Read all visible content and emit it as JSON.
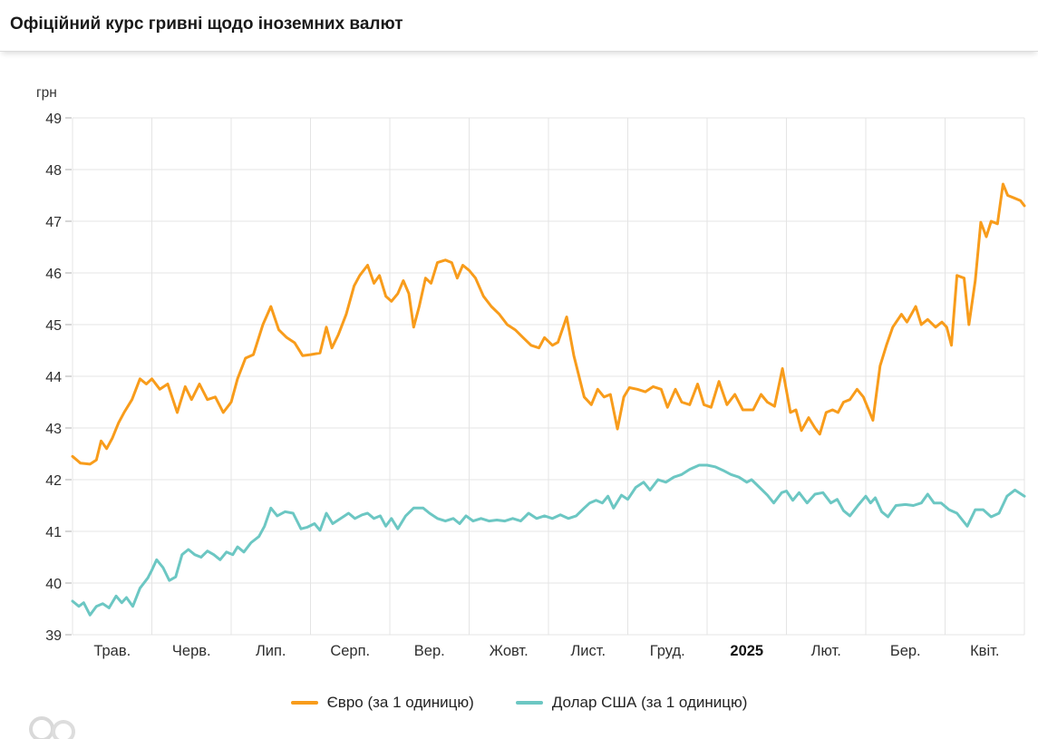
{
  "header": {
    "title": "Офіційний курс гривні щодо іноземних валют"
  },
  "chart_data": {
    "type": "line",
    "title": "Офіційний курс гривні щодо іноземних валют",
    "ylabel": "грн",
    "xlabel": "",
    "ylim": [
      39,
      49
    ],
    "y_tick_step": 1,
    "grid": true,
    "legend_position": "bottom",
    "x_range_months": [
      0,
      12
    ],
    "x_tick_labels": [
      "Трав.",
      "Черв.",
      "Лип.",
      "Серп.",
      "Вер.",
      "Жовт.",
      "Лист.",
      "Груд.",
      "2025",
      "Лют.",
      "Бер.",
      "Квіт."
    ],
    "bold_x_tick": "2025",
    "series": [
      {
        "key": "euro",
        "name": "Євро (за 1 одиницю)",
        "color": "#f89c1b",
        "points": [
          [
            0,
            42.45
          ],
          [
            0.1,
            42.32
          ],
          [
            0.22,
            42.3
          ],
          [
            0.3,
            42.38
          ],
          [
            0.36,
            42.75
          ],
          [
            0.43,
            42.6
          ],
          [
            0.5,
            42.8
          ],
          [
            0.58,
            43.1
          ],
          [
            0.65,
            43.3
          ],
          [
            0.75,
            43.55
          ],
          [
            0.85,
            43.95
          ],
          [
            0.93,
            43.85
          ],
          [
            1.0,
            43.95
          ],
          [
            1.1,
            43.75
          ],
          [
            1.2,
            43.85
          ],
          [
            1.32,
            43.3
          ],
          [
            1.42,
            43.8
          ],
          [
            1.5,
            43.55
          ],
          [
            1.6,
            43.85
          ],
          [
            1.7,
            43.55
          ],
          [
            1.8,
            43.6
          ],
          [
            1.9,
            43.3
          ],
          [
            2.0,
            43.5
          ],
          [
            2.08,
            43.95
          ],
          [
            2.18,
            44.35
          ],
          [
            2.28,
            44.42
          ],
          [
            2.4,
            45.0
          ],
          [
            2.5,
            45.35
          ],
          [
            2.6,
            44.9
          ],
          [
            2.7,
            44.75
          ],
          [
            2.8,
            44.65
          ],
          [
            2.9,
            44.4
          ],
          [
            3.0,
            44.42
          ],
          [
            3.12,
            44.45
          ],
          [
            3.2,
            44.95
          ],
          [
            3.27,
            44.55
          ],
          [
            3.35,
            44.8
          ],
          [
            3.45,
            45.2
          ],
          [
            3.55,
            45.75
          ],
          [
            3.62,
            45.95
          ],
          [
            3.72,
            46.15
          ],
          [
            3.8,
            45.8
          ],
          [
            3.87,
            45.95
          ],
          [
            3.95,
            45.55
          ],
          [
            4.02,
            45.45
          ],
          [
            4.1,
            45.6
          ],
          [
            4.17,
            45.85
          ],
          [
            4.24,
            45.6
          ],
          [
            4.3,
            44.95
          ],
          [
            4.37,
            45.35
          ],
          [
            4.45,
            45.9
          ],
          [
            4.52,
            45.8
          ],
          [
            4.6,
            46.2
          ],
          [
            4.7,
            46.25
          ],
          [
            4.78,
            46.2
          ],
          [
            4.85,
            45.9
          ],
          [
            4.92,
            46.15
          ],
          [
            5.0,
            46.05
          ],
          [
            5.08,
            45.9
          ],
          [
            5.18,
            45.55
          ],
          [
            5.28,
            45.35
          ],
          [
            5.38,
            45.2
          ],
          [
            5.48,
            45.0
          ],
          [
            5.58,
            44.9
          ],
          [
            5.68,
            44.75
          ],
          [
            5.78,
            44.6
          ],
          [
            5.88,
            44.55
          ],
          [
            5.95,
            44.75
          ],
          [
            6.05,
            44.6
          ],
          [
            6.12,
            44.66
          ],
          [
            6.23,
            45.15
          ],
          [
            6.32,
            44.4
          ],
          [
            6.45,
            43.6
          ],
          [
            6.54,
            43.45
          ],
          [
            6.62,
            43.75
          ],
          [
            6.7,
            43.6
          ],
          [
            6.78,
            43.65
          ],
          [
            6.87,
            42.98
          ],
          [
            6.95,
            43.6
          ],
          [
            7.02,
            43.78
          ],
          [
            7.12,
            43.75
          ],
          [
            7.22,
            43.7
          ],
          [
            7.32,
            43.8
          ],
          [
            7.42,
            43.75
          ],
          [
            7.5,
            43.4
          ],
          [
            7.6,
            43.75
          ],
          [
            7.68,
            43.5
          ],
          [
            7.78,
            43.45
          ],
          [
            7.88,
            43.85
          ],
          [
            7.96,
            43.45
          ],
          [
            8.05,
            43.4
          ],
          [
            8.15,
            43.9
          ],
          [
            8.25,
            43.45
          ],
          [
            8.35,
            43.65
          ],
          [
            8.45,
            43.35
          ],
          [
            8.58,
            43.35
          ],
          [
            8.68,
            43.65
          ],
          [
            8.76,
            43.5
          ],
          [
            8.85,
            43.42
          ],
          [
            8.95,
            44.15
          ],
          [
            9.05,
            43.3
          ],
          [
            9.12,
            43.35
          ],
          [
            9.19,
            42.95
          ],
          [
            9.28,
            43.2
          ],
          [
            9.36,
            43.0
          ],
          [
            9.42,
            42.88
          ],
          [
            9.5,
            43.3
          ],
          [
            9.58,
            43.35
          ],
          [
            9.65,
            43.3
          ],
          [
            9.72,
            43.5
          ],
          [
            9.8,
            43.55
          ],
          [
            9.89,
            43.75
          ],
          [
            9.97,
            43.6
          ],
          [
            10.09,
            43.15
          ],
          [
            10.18,
            44.2
          ],
          [
            10.26,
            44.6
          ],
          [
            10.34,
            44.95
          ],
          [
            10.45,
            45.2
          ],
          [
            10.52,
            45.05
          ],
          [
            10.63,
            45.35
          ],
          [
            10.7,
            45.0
          ],
          [
            10.78,
            45.1
          ],
          [
            10.88,
            44.95
          ],
          [
            10.96,
            45.05
          ],
          [
            11.02,
            44.95
          ],
          [
            11.08,
            44.6
          ],
          [
            11.15,
            45.95
          ],
          [
            11.24,
            45.9
          ],
          [
            11.3,
            45.0
          ],
          [
            11.38,
            45.85
          ],
          [
            11.45,
            46.98
          ],
          [
            11.52,
            46.7
          ],
          [
            11.58,
            47.0
          ],
          [
            11.66,
            46.95
          ],
          [
            11.73,
            47.72
          ],
          [
            11.79,
            47.5
          ],
          [
            11.87,
            47.45
          ],
          [
            11.95,
            47.4
          ],
          [
            12.0,
            47.3
          ]
        ]
      },
      {
        "key": "usd",
        "name": "Долар США (за 1 одиницю)",
        "color": "#6cc7c3",
        "points": [
          [
            0,
            39.65
          ],
          [
            0.08,
            39.55
          ],
          [
            0.14,
            39.62
          ],
          [
            0.22,
            39.38
          ],
          [
            0.3,
            39.55
          ],
          [
            0.38,
            39.6
          ],
          [
            0.46,
            39.52
          ],
          [
            0.55,
            39.75
          ],
          [
            0.62,
            39.62
          ],
          [
            0.68,
            39.72
          ],
          [
            0.76,
            39.55
          ],
          [
            0.85,
            39.9
          ],
          [
            0.95,
            40.1
          ],
          [
            1.0,
            40.25
          ],
          [
            1.06,
            40.45
          ],
          [
            1.14,
            40.3
          ],
          [
            1.22,
            40.05
          ],
          [
            1.3,
            40.12
          ],
          [
            1.38,
            40.55
          ],
          [
            1.46,
            40.65
          ],
          [
            1.54,
            40.55
          ],
          [
            1.62,
            40.5
          ],
          [
            1.7,
            40.62
          ],
          [
            1.78,
            40.55
          ],
          [
            1.86,
            40.45
          ],
          [
            1.94,
            40.6
          ],
          [
            2.02,
            40.55
          ],
          [
            2.08,
            40.7
          ],
          [
            2.16,
            40.6
          ],
          [
            2.25,
            40.78
          ],
          [
            2.35,
            40.9
          ],
          [
            2.42,
            41.1
          ],
          [
            2.5,
            41.45
          ],
          [
            2.58,
            41.3
          ],
          [
            2.68,
            41.38
          ],
          [
            2.78,
            41.35
          ],
          [
            2.88,
            41.05
          ],
          [
            2.96,
            41.08
          ],
          [
            3.05,
            41.15
          ],
          [
            3.12,
            41.02
          ],
          [
            3.2,
            41.35
          ],
          [
            3.28,
            41.15
          ],
          [
            3.38,
            41.25
          ],
          [
            3.48,
            41.35
          ],
          [
            3.56,
            41.25
          ],
          [
            3.65,
            41.32
          ],
          [
            3.72,
            41.35
          ],
          [
            3.8,
            41.25
          ],
          [
            3.88,
            41.3
          ],
          [
            3.95,
            41.1
          ],
          [
            4.02,
            41.25
          ],
          [
            4.1,
            41.05
          ],
          [
            4.2,
            41.3
          ],
          [
            4.3,
            41.45
          ],
          [
            4.42,
            41.45
          ],
          [
            4.5,
            41.35
          ],
          [
            4.6,
            41.25
          ],
          [
            4.7,
            41.2
          ],
          [
            4.8,
            41.25
          ],
          [
            4.88,
            41.15
          ],
          [
            4.96,
            41.3
          ],
          [
            5.05,
            41.2
          ],
          [
            5.15,
            41.25
          ],
          [
            5.25,
            41.2
          ],
          [
            5.35,
            41.22
          ],
          [
            5.45,
            41.2
          ],
          [
            5.55,
            41.25
          ],
          [
            5.65,
            41.2
          ],
          [
            5.75,
            41.35
          ],
          [
            5.85,
            41.25
          ],
          [
            5.95,
            41.3
          ],
          [
            6.05,
            41.25
          ],
          [
            6.15,
            41.32
          ],
          [
            6.25,
            41.25
          ],
          [
            6.35,
            41.3
          ],
          [
            6.45,
            41.45
          ],
          [
            6.52,
            41.55
          ],
          [
            6.6,
            41.6
          ],
          [
            6.68,
            41.55
          ],
          [
            6.75,
            41.68
          ],
          [
            6.82,
            41.45
          ],
          [
            6.92,
            41.7
          ],
          [
            7.0,
            41.62
          ],
          [
            7.1,
            41.85
          ],
          [
            7.2,
            41.95
          ],
          [
            7.28,
            41.8
          ],
          [
            7.38,
            42.0
          ],
          [
            7.48,
            41.95
          ],
          [
            7.58,
            42.05
          ],
          [
            7.68,
            42.1
          ],
          [
            7.78,
            42.2
          ],
          [
            7.9,
            42.28
          ],
          [
            8.0,
            42.28
          ],
          [
            8.1,
            42.25
          ],
          [
            8.2,
            42.18
          ],
          [
            8.3,
            42.1
          ],
          [
            8.4,
            42.05
          ],
          [
            8.5,
            41.95
          ],
          [
            8.56,
            42.0
          ],
          [
            8.66,
            41.85
          ],
          [
            8.76,
            41.7
          ],
          [
            8.84,
            41.55
          ],
          [
            8.94,
            41.75
          ],
          [
            9.0,
            41.78
          ],
          [
            9.08,
            41.6
          ],
          [
            9.16,
            41.75
          ],
          [
            9.26,
            41.55
          ],
          [
            9.36,
            41.72
          ],
          [
            9.46,
            41.75
          ],
          [
            9.56,
            41.55
          ],
          [
            9.64,
            41.62
          ],
          [
            9.72,
            41.4
          ],
          [
            9.8,
            41.3
          ],
          [
            9.9,
            41.5
          ],
          [
            10.0,
            41.68
          ],
          [
            10.06,
            41.55
          ],
          [
            10.12,
            41.65
          ],
          [
            10.2,
            41.38
          ],
          [
            10.28,
            41.28
          ],
          [
            10.38,
            41.5
          ],
          [
            10.5,
            41.52
          ],
          [
            10.6,
            41.5
          ],
          [
            10.7,
            41.55
          ],
          [
            10.78,
            41.72
          ],
          [
            10.86,
            41.55
          ],
          [
            10.95,
            41.55
          ],
          [
            11.05,
            41.42
          ],
          [
            11.15,
            41.35
          ],
          [
            11.28,
            41.1
          ],
          [
            11.38,
            41.42
          ],
          [
            11.48,
            41.42
          ],
          [
            11.58,
            41.28
          ],
          [
            11.68,
            41.35
          ],
          [
            11.78,
            41.68
          ],
          [
            11.88,
            41.8
          ],
          [
            12.0,
            41.68
          ]
        ]
      }
    ],
    "colors": {
      "grid": "#e4e4e4",
      "tick": "#adadad",
      "axis_text": "#2e2e2e",
      "bold_axis_text": "#111111"
    }
  }
}
